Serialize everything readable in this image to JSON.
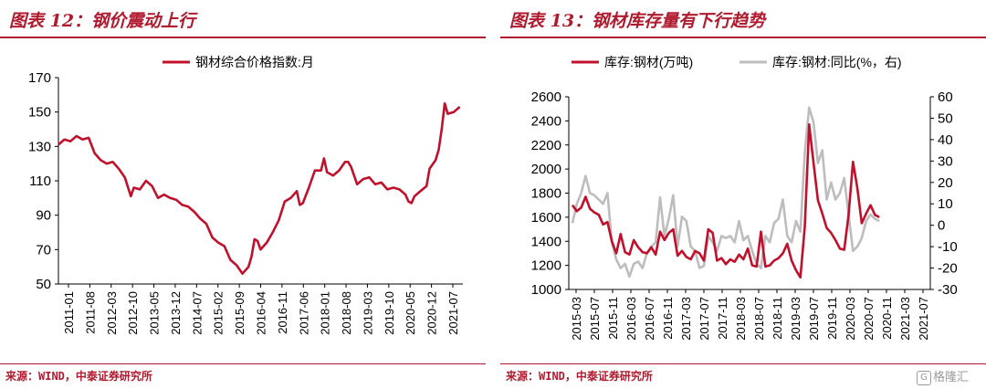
{
  "left": {
    "title": "图表 12：钢价震动上行",
    "source": "来源：WIND，中泰证券研究所",
    "colors": {
      "line": "#c0102c",
      "accent": "#b01a2e"
    },
    "chart_data": {
      "type": "line",
      "title": "图表 12：钢价震动上行",
      "xlabel": "",
      "ylabel": "",
      "ylim": [
        50,
        170
      ],
      "yticks": [
        50,
        70,
        90,
        110,
        130,
        150,
        170
      ],
      "xticks": [
        "2011-01",
        "2011-08",
        "2012-03",
        "2012-10",
        "2013-05",
        "2013-12",
        "2014-07",
        "2015-02",
        "2015-09",
        "2016-04",
        "2016-11",
        "2017-06",
        "2018-01",
        "2018-08",
        "2019-03",
        "2019-10",
        "2020-05",
        "2020-12",
        "2021-07"
      ],
      "xrange": [
        0,
        128
      ],
      "grid": false,
      "legend": "top-center",
      "series": [
        {
          "name": "钢材综合价格指数:月",
          "points": [
            [
              0,
              131
            ],
            [
              2,
              134
            ],
            [
              4,
              133
            ],
            [
              6,
              136
            ],
            [
              8,
              134
            ],
            [
              10,
              135
            ],
            [
              12,
              126
            ],
            [
              14,
              122
            ],
            [
              16,
              120
            ],
            [
              18,
              121
            ],
            [
              20,
              117
            ],
            [
              22,
              112
            ],
            [
              24,
              101
            ],
            [
              25,
              106
            ],
            [
              27,
              105
            ],
            [
              29,
              110
            ],
            [
              31,
              107
            ],
            [
              33,
              100
            ],
            [
              35,
              102
            ],
            [
              37,
              100
            ],
            [
              39,
              99
            ],
            [
              41,
              96
            ],
            [
              43,
              95
            ],
            [
              45,
              92
            ],
            [
              47,
              88
            ],
            [
              49,
              85
            ],
            [
              51,
              77
            ],
            [
              53,
              74
            ],
            [
              55,
              72
            ],
            [
              57,
              64
            ],
            [
              59,
              61
            ],
            [
              61,
              56
            ],
            [
              63,
              60
            ],
            [
              64,
              66
            ],
            [
              65,
              76
            ],
            [
              66,
              75
            ],
            [
              67,
              70
            ],
            [
              69,
              74
            ],
            [
              71,
              80
            ],
            [
              73,
              87
            ],
            [
              75,
              98
            ],
            [
              77,
              100
            ],
            [
              79,
              104
            ],
            [
              80,
              96
            ],
            [
              81,
              97
            ],
            [
              83,
              106
            ],
            [
              85,
              116
            ],
            [
              87,
              116
            ],
            [
              88,
              123
            ],
            [
              89,
              115
            ],
            [
              91,
              113
            ],
            [
              93,
              116
            ],
            [
              95,
              121
            ],
            [
              96,
              121
            ],
            [
              97,
              118
            ],
            [
              99,
              108
            ],
            [
              101,
              111
            ],
            [
              103,
              112
            ],
            [
              105,
              108
            ],
            [
              107,
              109
            ],
            [
              109,
              105
            ],
            [
              111,
              106
            ],
            [
              113,
              105
            ],
            [
              115,
              102
            ],
            [
              116,
              98
            ],
            [
              117,
              97
            ],
            [
              118,
              101
            ],
            [
              120,
              104
            ],
            [
              122,
              107
            ],
            [
              123,
              117
            ],
            [
              125,
              122
            ],
            [
              126,
              128
            ],
            [
              127,
              140
            ],
            [
              128,
              155
            ],
            [
              129,
              149
            ],
            [
              131,
              150
            ],
            [
              133,
              153
            ]
          ]
        }
      ]
    }
  },
  "right": {
    "title": "图表 13：钢材库存量有下行趋势",
    "source": "来源：WIND，中泰证券研究所",
    "colors": {
      "primary": "#c0102c",
      "secondary": "#bdbdbd",
      "accent": "#b01a2e"
    },
    "chart_data": {
      "type": "line",
      "title": "图表 13：钢材库存量有下行趋势",
      "xlabel": "",
      "ylabel": "",
      "ylim": [
        1000,
        2600
      ],
      "y2lim": [
        -30,
        60
      ],
      "yticks": [
        1000,
        1200,
        1400,
        1600,
        1800,
        2000,
        2200,
        2400,
        2600
      ],
      "y2ticks": [
        -30,
        -20,
        -10,
        0,
        10,
        20,
        30,
        40,
        50,
        60
      ],
      "xticks": [
        "2015-03",
        "2015-07",
        "2015-11",
        "2016-03",
        "2016-07",
        "2016-11",
        "2017-03",
        "2017-07",
        "2017-11",
        "2018-03",
        "2018-07",
        "2018-11",
        "2019-03",
        "2019-07",
        "2019-11",
        "2020-03",
        "2020-07",
        "2020-11",
        "2021-03",
        "2021-07"
      ],
      "xrange": [
        0,
        80
      ],
      "grid": false,
      "legend": "top",
      "series": [
        {
          "name": "库存:钢材(万吨)",
          "axis": "left",
          "points": [
            [
              0,
              1700
            ],
            [
              1,
              1650
            ],
            [
              2,
              1680
            ],
            [
              3,
              1770
            ],
            [
              4,
              1670
            ],
            [
              5,
              1640
            ],
            [
              6,
              1620
            ],
            [
              7,
              1540
            ],
            [
              8,
              1560
            ],
            [
              9,
              1400
            ],
            [
              10,
              1300
            ],
            [
              11,
              1460
            ],
            [
              12,
              1310
            ],
            [
              13,
              1290
            ],
            [
              14,
              1410
            ],
            [
              15,
              1350
            ],
            [
              16,
              1310
            ],
            [
              17,
              1300
            ],
            [
              18,
              1350
            ],
            [
              19,
              1290
            ],
            [
              20,
              1480
            ],
            [
              21,
              1410
            ],
            [
              22,
              1470
            ],
            [
              23,
              1500
            ],
            [
              24,
              1280
            ],
            [
              25,
              1320
            ],
            [
              26,
              1270
            ],
            [
              27,
              1250
            ],
            [
              28,
              1320
            ],
            [
              29,
              1300
            ],
            [
              30,
              1240
            ],
            [
              31,
              1500
            ],
            [
              32,
              1470
            ],
            [
              33,
              1240
            ],
            [
              34,
              1260
            ],
            [
              35,
              1210
            ],
            [
              36,
              1250
            ],
            [
              37,
              1230
            ],
            [
              38,
              1290
            ],
            [
              39,
              1250
            ],
            [
              40,
              1340
            ],
            [
              41,
              1200
            ],
            [
              42,
              1190
            ],
            [
              43,
              1480
            ],
            [
              44,
              1190
            ],
            [
              45,
              1200
            ],
            [
              46,
              1240
            ],
            [
              47,
              1260
            ],
            [
              48,
              1300
            ],
            [
              49,
              1380
            ],
            [
              50,
              1240
            ],
            [
              51,
              1160
            ],
            [
              52,
              1100
            ],
            [
              53,
              1520
            ],
            [
              54,
              2370
            ],
            [
              55,
              2050
            ],
            [
              56,
              1740
            ],
            [
              57,
              1630
            ],
            [
              58,
              1510
            ],
            [
              59,
              1470
            ],
            [
              60,
              1410
            ],
            [
              61,
              1340
            ],
            [
              62,
              1330
            ],
            [
              63,
              1620
            ],
            [
              64,
              2060
            ],
            [
              65,
              1840
            ],
            [
              66,
              1550
            ],
            [
              67,
              1630
            ],
            [
              68,
              1700
            ],
            [
              69,
              1620
            ],
            [
              70,
              1600
            ]
          ]
        },
        {
          "name": "库存:钢材:同比(%，右)",
          "axis": "right",
          "points": [
            [
              0,
              1
            ],
            [
              1,
              10
            ],
            [
              2,
              15
            ],
            [
              3,
              23
            ],
            [
              4,
              15
            ],
            [
              5,
              14
            ],
            [
              6,
              12
            ],
            [
              7,
              10
            ],
            [
              8,
              15
            ],
            [
              9,
              -8
            ],
            [
              10,
              -16
            ],
            [
              11,
              -20
            ],
            [
              12,
              -18
            ],
            [
              13,
              -24
            ],
            [
              14,
              -18
            ],
            [
              15,
              -17
            ],
            [
              16,
              -20
            ],
            [
              17,
              -13
            ],
            [
              18,
              -10
            ],
            [
              19,
              -8
            ],
            [
              20,
              13
            ],
            [
              21,
              -5
            ],
            [
              22,
              3
            ],
            [
              23,
              14
            ],
            [
              24,
              -10
            ],
            [
              25,
              4
            ],
            [
              26,
              2
            ],
            [
              27,
              -10
            ],
            [
              28,
              -12
            ],
            [
              29,
              -20
            ],
            [
              30,
              -19
            ],
            [
              31,
              -5
            ],
            [
              32,
              -8
            ],
            [
              33,
              -12
            ],
            [
              34,
              -5
            ],
            [
              35,
              -6
            ],
            [
              36,
              -5
            ],
            [
              37,
              -8
            ],
            [
              38,
              2
            ],
            [
              39,
              -7
            ],
            [
              40,
              -5
            ],
            [
              41,
              -12
            ],
            [
              42,
              -18
            ],
            [
              43,
              -20
            ],
            [
              44,
              -5
            ],
            [
              45,
              -8
            ],
            [
              46,
              1
            ],
            [
              47,
              3
            ],
            [
              48,
              12
            ],
            [
              49,
              -5
            ],
            [
              50,
              -8
            ],
            [
              51,
              2
            ],
            [
              52,
              -3
            ],
            [
              53,
              34
            ],
            [
              54,
              55
            ],
            [
              55,
              48
            ],
            [
              56,
              29
            ],
            [
              57,
              35
            ],
            [
              58,
              12
            ],
            [
              59,
              20
            ],
            [
              60,
              12
            ],
            [
              61,
              15
            ],
            [
              62,
              22
            ],
            [
              63,
              5
            ],
            [
              64,
              -12
            ],
            [
              65,
              -10
            ],
            [
              66,
              -6
            ],
            [
              67,
              2
            ],
            [
              68,
              5
            ],
            [
              69,
              3
            ],
            [
              70,
              2
            ]
          ]
        }
      ]
    }
  }
}
